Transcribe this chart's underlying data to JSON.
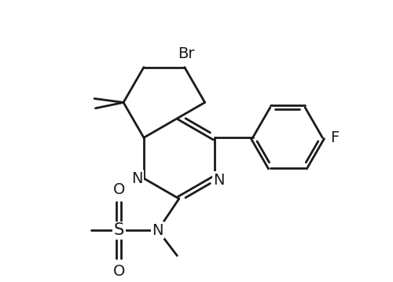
{
  "bg_color": "#ffffff",
  "line_color": "#1a1a1a",
  "line_width": 2.0,
  "font_size": 14,
  "figsize": [
    5.0,
    3.59
  ],
  "dpi": 100,
  "xlim": [
    0,
    10
  ],
  "ylim": [
    0,
    7.2
  ]
}
